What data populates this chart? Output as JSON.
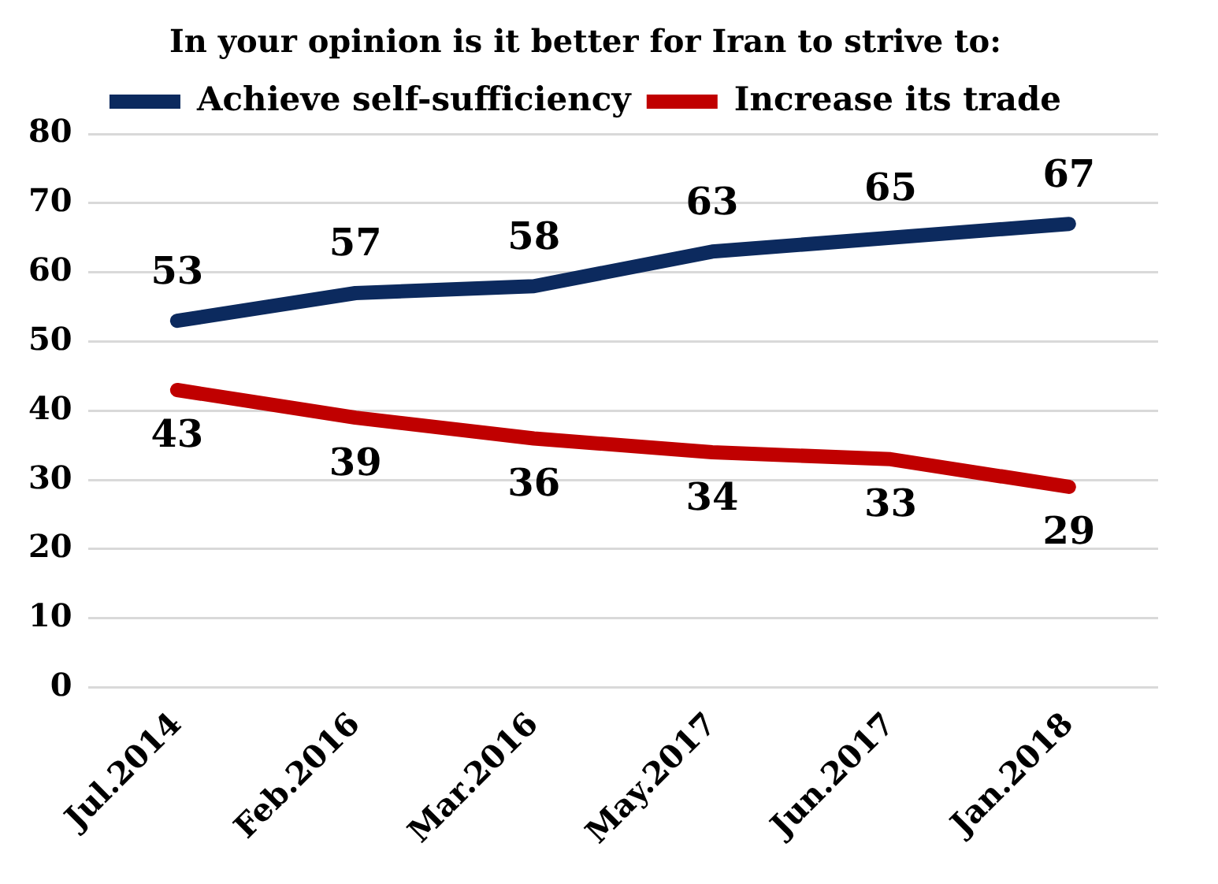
{
  "chart_data": {
    "type": "line",
    "title": "In your opinion is it better for Iran to strive to:",
    "categories": [
      "Jul.2014",
      "Feb.2016",
      "Mar.2016",
      "May.2017",
      "Jun.2017",
      "Jan.2018"
    ],
    "series": [
      {
        "name": "Achieve self-sufficiency",
        "color": "#0c2a5e",
        "values": [
          53,
          57,
          58,
          63,
          65,
          67
        ]
      },
      {
        "name": "Increase its trade",
        "color": "#c00000",
        "values": [
          43,
          39,
          36,
          34,
          33,
          29
        ]
      }
    ],
    "ylim": [
      0,
      80
    ],
    "yticks": [
      0,
      10,
      20,
      30,
      40,
      50,
      60,
      70,
      80
    ],
    "grid": "y",
    "legend": "top",
    "data_labels": true,
    "marker": "none",
    "line_style": "solid"
  }
}
